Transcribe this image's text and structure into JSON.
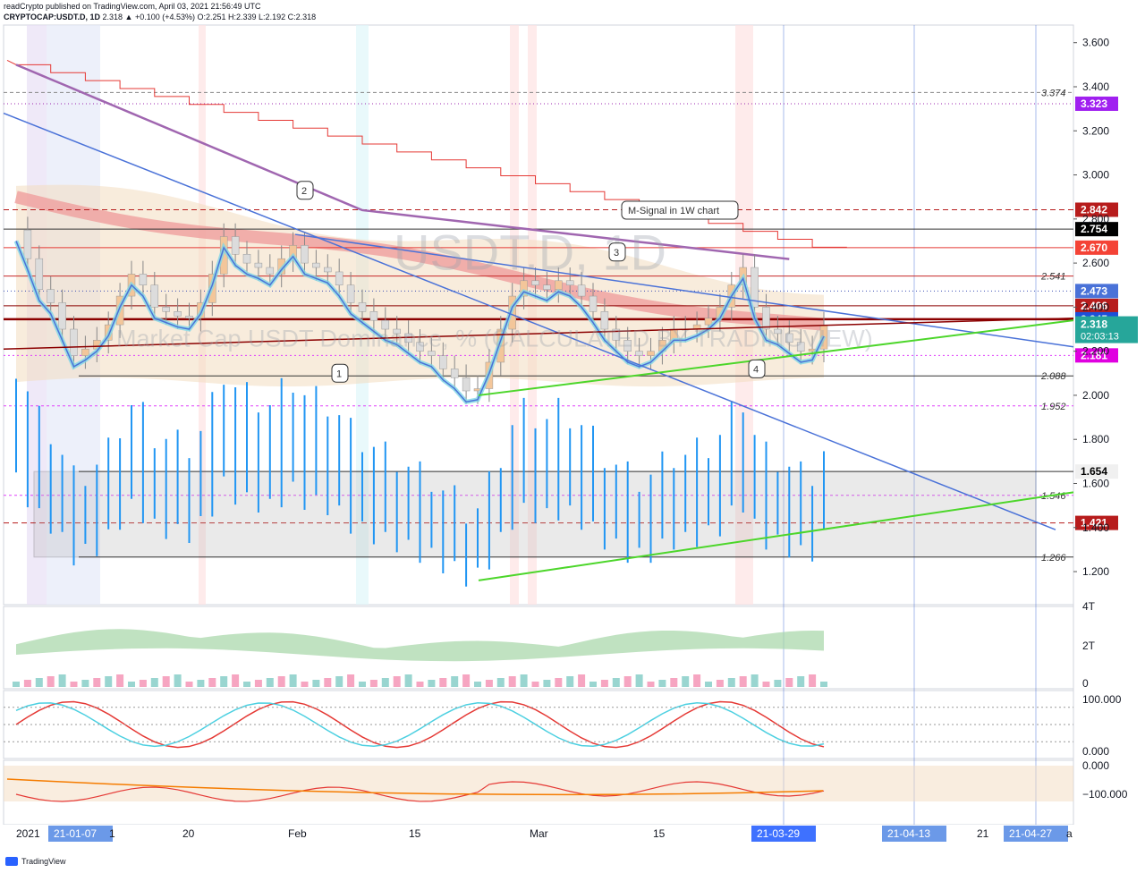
{
  "header": {
    "line1": "readCrypto published on TradingView.com, April 03, 2021 21:56:49 UTC",
    "symbol": "CRYPTOCAP:USDT.D, 1D",
    "quote": "2.318 ▲ +0.100 (+4.53%) O:2.251 H:2.339 L:2.192 C:2.318"
  },
  "watermark": {
    "symbol": "USDT.D, 1D",
    "description": "Market Cap USDT Dominance, % (CALCULATED BY TRADINGVIEW)"
  },
  "colors": {
    "bull": "#26a69a",
    "bear": "#ef5350",
    "bar_blue": "#2196f3",
    "trend_blue": "#4a72d8",
    "trend_green": "#4cd62a",
    "dark_red": "#8b0000",
    "purple_ma": "#a066b0",
    "orange_ma": "#f0a030",
    "cloud": "#f3dcc0",
    "grid": "#e0e3eb"
  },
  "chart_data": {
    "type": "line",
    "title": "CRYPTOCAP:USDT.D, 1D",
    "ylim": [
      1.05,
      3.68
    ],
    "y_ticks": [
      "3.600",
      "3.400",
      "3.200",
      "3.000",
      "2.800",
      "2.600",
      "2.400",
      "2.200",
      "2.000",
      "1.800",
      "1.600",
      "1.400",
      "1.200"
    ],
    "x_ticks": [
      "2021",
      "21-01-07",
      "1",
      "20",
      "Feb",
      "15",
      "Mar",
      "15",
      "21-03-29",
      "21-04-13",
      "21",
      "21-04-27",
      "a"
    ],
    "series": [
      {
        "values": [
          2.75,
          2.62,
          2.48,
          2.42,
          2.3,
          2.18,
          2.21,
          2.25,
          2.32,
          2.45,
          2.55,
          2.5,
          2.4,
          2.38,
          2.36,
          2.35,
          2.42,
          2.55,
          2.72,
          2.64,
          2.6,
          2.58,
          2.55,
          2.62,
          2.68,
          2.6,
          2.58,
          2.56,
          2.5,
          2.42,
          2.38,
          2.34,
          2.3,
          2.28,
          2.24,
          2.2,
          2.18,
          2.12,
          2.08,
          2.02,
          2.03,
          2.15,
          2.3,
          2.45,
          2.52,
          2.5,
          2.48,
          2.52,
          2.5,
          2.45,
          2.38,
          2.3,
          2.25,
          2.2,
          2.18,
          2.2,
          2.25,
          2.3,
          2.3,
          2.32,
          2.35,
          2.4,
          2.5,
          2.58,
          2.4,
          2.3,
          2.28,
          2.24,
          2.2,
          2.21,
          2.318
        ]
      }
    ],
    "horizontal_levels": [
      {
        "label": "3.374",
        "value": 3.374
      },
      {
        "label": "3.323",
        "value": 3.323
      },
      {
        "label": "2.842",
        "value": 2.842
      },
      {
        "label": "2.754",
        "value": 2.754
      },
      {
        "label": "2.670",
        "value": 2.67
      },
      {
        "label": "2.541",
        "value": 2.541
      },
      {
        "label": "2.473",
        "value": 2.473
      },
      {
        "label": "2.406",
        "value": 2.406
      },
      {
        "label": "2.345",
        "value": 2.345
      },
      {
        "label": "2.318",
        "value": 2.318
      },
      {
        "label": "2.181",
        "value": 2.181
      },
      {
        "label": "2.088",
        "value": 2.088
      },
      {
        "label": "1.952",
        "value": 1.952
      },
      {
        "label": "1.654",
        "value": 1.654
      },
      {
        "label": "1.546",
        "value": 1.546
      },
      {
        "label": "1.421",
        "value": 1.421
      },
      {
        "label": "1.266",
        "value": 1.266
      }
    ],
    "current_price": {
      "value": "2.318",
      "countdown": "02:03:13"
    },
    "annotations": [
      "M-Signal in 1W chart",
      "1",
      "2",
      "3",
      "4"
    ],
    "indicator_panes": [
      {
        "ticks": [
          "4T",
          "2T",
          "0"
        ]
      },
      {
        "ticks": [
          "100.000",
          "0.000"
        ]
      },
      {
        "ticks": [
          "0.000",
          "−100.000"
        ]
      }
    ]
  },
  "footer": {
    "brand": "TradingView"
  }
}
